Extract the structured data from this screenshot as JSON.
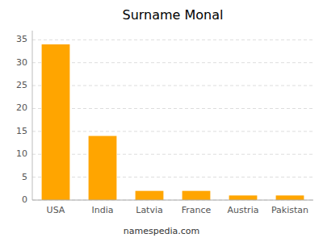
{
  "chart_data": {
    "type": "bar",
    "title": "Surname Monal",
    "categories": [
      "USA",
      "India",
      "Latvia",
      "France",
      "Austria",
      "Pakistan"
    ],
    "values": [
      34,
      14,
      2,
      2,
      1,
      1
    ],
    "color": "#FFA500",
    "ylim": [
      0,
      37
    ],
    "yticks": [
      0,
      5,
      10,
      15,
      20,
      25,
      30,
      35
    ],
    "grid": true,
    "annotations": [
      "namespedia.com"
    ]
  }
}
